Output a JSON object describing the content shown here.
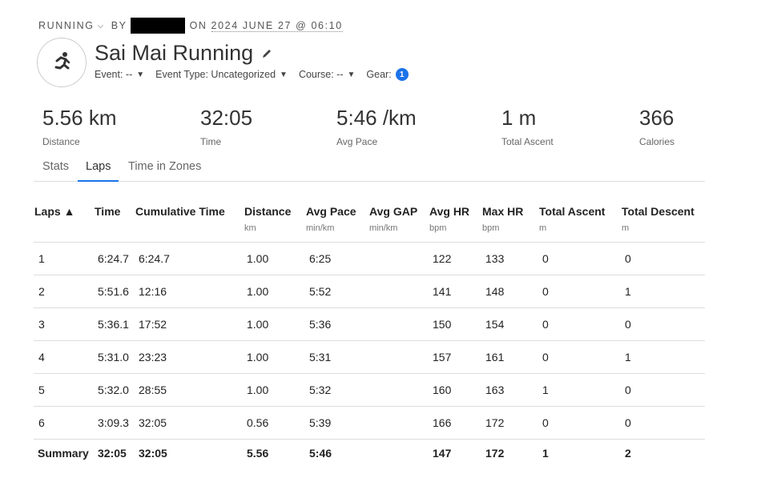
{
  "breadcrumb": {
    "activity_type": "RUNNING",
    "by": "BY",
    "on": "ON",
    "datetime": "2024 JUNE 27 @ 06:10"
  },
  "activity": {
    "title": "Sai Mai Running",
    "icon": "running-person-icon"
  },
  "meta": {
    "event": "Event: --",
    "event_type": "Event Type: Uncategorized",
    "course": "Course: --",
    "gear": "Gear:",
    "gear_count": "1"
  },
  "stats": [
    {
      "value": "5.56 km",
      "label": "Distance"
    },
    {
      "value": "32:05",
      "label": "Time"
    },
    {
      "value": "5:46 /km",
      "label": "Avg Pace"
    },
    {
      "value": "1 m",
      "label": "Total Ascent"
    },
    {
      "value": "366",
      "label": "Calories"
    }
  ],
  "tabs": [
    {
      "label": "Stats",
      "active": false
    },
    {
      "label": "Laps",
      "active": true
    },
    {
      "label": "Time in Zones",
      "active": false
    }
  ],
  "table": {
    "columns": [
      {
        "label": "Laps ▲",
        "unit": ""
      },
      {
        "label": "Time",
        "unit": ""
      },
      {
        "label": "Cumulative Time",
        "unit": ""
      },
      {
        "label": "Distance",
        "unit": "km"
      },
      {
        "label": "Avg Pace",
        "unit": "min/km"
      },
      {
        "label": "Avg GAP",
        "unit": "min/km"
      },
      {
        "label": "Avg HR",
        "unit": "bpm"
      },
      {
        "label": "Max HR",
        "unit": "bpm"
      },
      {
        "label": "Total Ascent",
        "unit": "m"
      },
      {
        "label": "Total Descent",
        "unit": "m"
      }
    ],
    "rows": [
      [
        "1",
        "6:24.7",
        "6:24.7",
        "1.00",
        "6:25",
        "",
        "122",
        "133",
        "0",
        "0"
      ],
      [
        "2",
        "5:51.6",
        "12:16",
        "1.00",
        "5:52",
        "",
        "141",
        "148",
        "0",
        "1"
      ],
      [
        "3",
        "5:36.1",
        "17:52",
        "1.00",
        "5:36",
        "",
        "150",
        "154",
        "0",
        "0"
      ],
      [
        "4",
        "5:31.0",
        "23:23",
        "1.00",
        "5:31",
        "",
        "157",
        "161",
        "0",
        "1"
      ],
      [
        "5",
        "5:32.0",
        "28:55",
        "1.00",
        "5:32",
        "",
        "160",
        "163",
        "1",
        "0"
      ],
      [
        "6",
        "3:09.3",
        "32:05",
        "0.56",
        "5:39",
        "",
        "166",
        "172",
        "0",
        "0"
      ]
    ],
    "summary": [
      "Summary",
      "32:05",
      "32:05",
      "5.56",
      "5:46",
      "",
      "147",
      "172",
      "1",
      "2"
    ]
  }
}
